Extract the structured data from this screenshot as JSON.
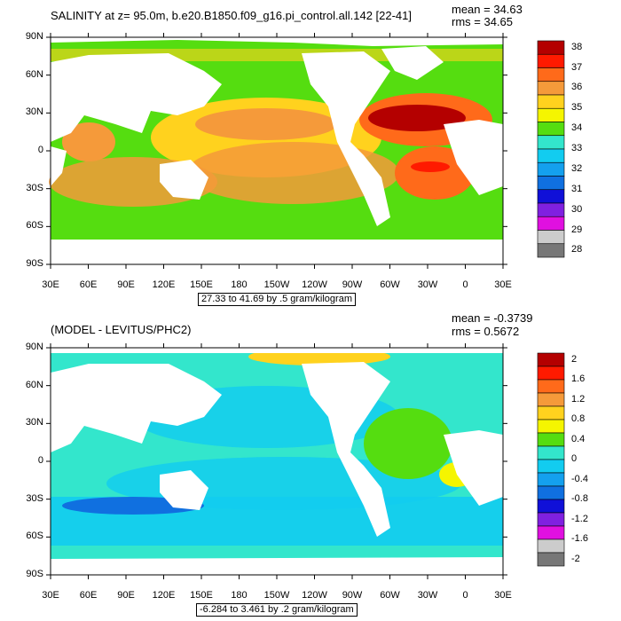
{
  "panel_top": {
    "title": "SALINITY at z=  95.0m, b.e20.B1850.f09_g16.pi_control.all.142 [22-41]",
    "mean": "mean = 34.63",
    "rms": "rms = 34.65",
    "range_note": "27.33 to 41.69 by .5 gram/kilogram",
    "colorbar": {
      "labels": [
        "38",
        "37",
        "36",
        "35",
        "34",
        "33",
        "32",
        "31",
        "30",
        "29",
        "28"
      ],
      "colors": [
        "#b40000",
        "#ff1a00",
        "#ff6a1a",
        "#f59a3a",
        "#ffd21e",
        "#f5f500",
        "#55dd10",
        "#33e6cc",
        "#12ccf0",
        "#14a0ee",
        "#1070e0",
        "#1010d8",
        "#8020e0",
        "#e010e0",
        "#cccccc",
        "#777777"
      ]
    }
  },
  "panel_bottom": {
    "title": "(MODEL - LEVITUS/PHC2)",
    "mean": "mean = -0.3739",
    "rms": "rms = 0.5672",
    "range_note": "-6.284 to 3.461 by .2 gram/kilogram",
    "colorbar": {
      "labels": [
        "2",
        "1.6",
        "1.2",
        "0.8",
        "0.4",
        "0",
        "-0.4",
        "-0.8",
        "-1.2",
        "-1.6",
        "-2"
      ],
      "colors": [
        "#b40000",
        "#ff1a00",
        "#ff6a1a",
        "#f59a3a",
        "#ffd21e",
        "#f5f500",
        "#55dd10",
        "#33e6cc",
        "#12ccf0",
        "#14a0ee",
        "#1070e0",
        "#1010d8",
        "#8020e0",
        "#e010e0",
        "#cccccc",
        "#777777"
      ]
    }
  },
  "axes": {
    "lat_labels": [
      "90N",
      "60N",
      "30N",
      "0",
      "30S",
      "60S",
      "90S"
    ],
    "lon_labels": [
      "30E",
      "60E",
      "90E",
      "120E",
      "150E",
      "180",
      "150W",
      "120W",
      "90W",
      "60W",
      "30W",
      "0",
      "30E"
    ]
  }
}
